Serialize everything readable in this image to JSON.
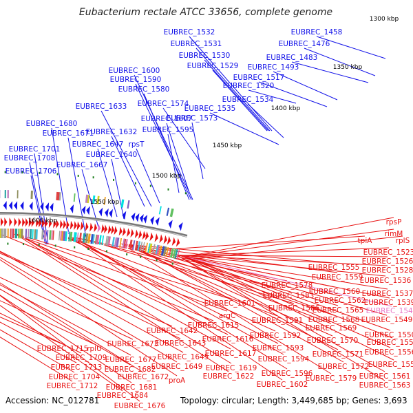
{
  "title": "Eubacterium rectale ATCC 33656, complete genome",
  "accession": "Accession: NC_012781",
  "topology": "Topology: circular; Length: 3,449,685 bp; Genes: 3,693",
  "ticks": [
    "1300 kbp",
    "1350 kbp",
    "1400 kbp",
    "1450 kbp",
    "1500 kbp",
    "1550 kbp",
    "1600 kbp"
  ],
  "top_labels": [
    "EUBREC_1532",
    "EUBREC_1458",
    "EUBREC_1531",
    "EUBREC_1476",
    "EUBREC_1530",
    "EUBREC_1483",
    "EUBREC_1529",
    "EUBREC_1493",
    "EUBREC_1517",
    "EUBREC_1600",
    "EUBREC_1520",
    "EUBREC_1590",
    "EUBREC_1580",
    "EUBREC_1534",
    "EUBREC_1574",
    "EUBREC_1535",
    "EUBREC_1633",
    "EUBREC_1573",
    "EUBREC_1607",
    "EUBREC_1680",
    "EUBREC_1632",
    "EUBREC_1595",
    "EUBREC_1671",
    "EUBREC_1647",
    "rpsT",
    "EUBREC_1701",
    "EUBREC_1640",
    "EUBREC_1708",
    "EUBREC_1667",
    "EUBREC_1706"
  ],
  "bottom_labels": [
    "rpsP",
    "rimM",
    "tpiA",
    "rplS",
    "EUBREC_1523",
    "EUBREC_1526",
    "EUBREC_1555",
    "EUBREC_1528",
    "EUBREC_1559",
    "EUBREC_1536",
    "EUBREC_1578",
    "EUBREC_1560",
    "EUBREC_1583",
    "EUBREC_1537",
    "EUBREC_1562",
    "EUBREC_1539",
    "EUBREC_1601",
    "EUBREC_1586",
    "EUBREC_1565",
    "EUBREC_1547",
    "argC",
    "EUBREC_1591",
    "EUBREC_1568",
    "EUBREC_1549",
    "EUBREC_1615",
    "EUBREC_1569",
    "EUBREC_1642",
    "EUBREC_1592",
    "EUBREC_1550",
    "EUBREC_1616",
    "EUBREC_1570",
    "EUBREC_1554",
    "EUBREC_1673",
    "EUBREC_1643",
    "EUBREC_1593",
    "EUBREC_1556",
    "EUBREC_1715",
    "rplU",
    "EUBREC_1617",
    "EUBREC_1571",
    "EUBREC_1594",
    "EUBREC_1557",
    "EUBREC_1709",
    "EUBREC_1677",
    "EUBREC_1645",
    "EUBREC_1619",
    "EUBREC_1572",
    "EUBREC_1713",
    "EUBREC_1682",
    "EUBREC_1649",
    "EUBREC_1596",
    "EUBREC_1561",
    "EUBREC_1672",
    "EUBREC_1622",
    "EUBREC_1579",
    "EUBREC_1704",
    "proA",
    "EUBREC_1563",
    "EUBREC_1681",
    "EUBREC_1602",
    "EUBREC_1712",
    "EUBREC_1684",
    "EUBREC_1676"
  ],
  "colors": {
    "forward": "#1010e8",
    "reverse": "#e81010",
    "highlight": "#e878c8",
    "backbone": "#777777"
  }
}
